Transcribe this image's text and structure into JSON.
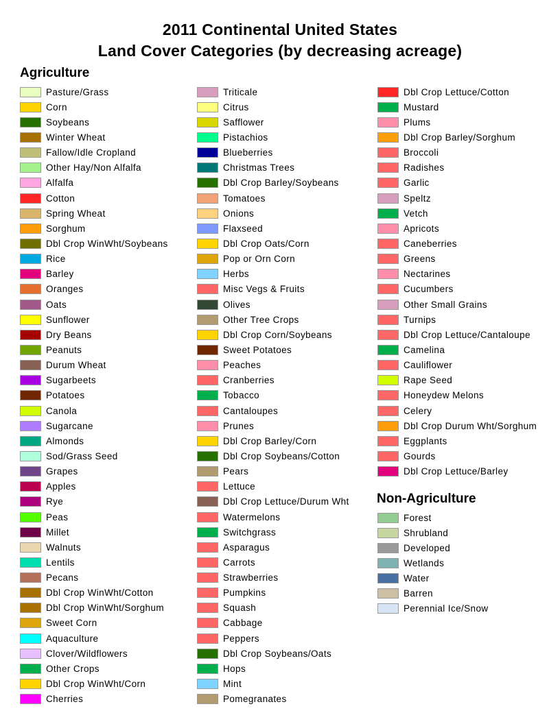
{
  "title_line1": "2011 Continental United States",
  "title_line2": "Land Cover Categories (by decreasing acreage)",
  "agriculture_heading": "Agriculture",
  "non_agriculture_heading": "Non-Agriculture",
  "agriculture": {
    "col1": [
      {
        "label": "Pasture/Grass",
        "color": "#E8FFBF"
      },
      {
        "label": "Corn",
        "color": "#FFD300"
      },
      {
        "label": "Soybeans",
        "color": "#267000"
      },
      {
        "label": "Winter Wheat",
        "color": "#A87000"
      },
      {
        "label": "Fallow/Idle Cropland",
        "color": "#BFBF7A"
      },
      {
        "label": "Other Hay/Non Alfalfa",
        "color": "#A5F28C"
      },
      {
        "label": "Alfalfa",
        "color": "#FFA5E2"
      },
      {
        "label": "Cotton",
        "color": "#FF2626"
      },
      {
        "label": "Spring Wheat",
        "color": "#D8B56B"
      },
      {
        "label": "Sorghum",
        "color": "#FF9E0A"
      },
      {
        "label": "Dbl Crop WinWht/Soybeans",
        "color": "#707000"
      },
      {
        "label": "Rice",
        "color": "#00A8E2"
      },
      {
        "label": "Barley",
        "color": "#E2007C"
      },
      {
        "label": "Oranges",
        "color": "#E5702E"
      },
      {
        "label": "Oats",
        "color": "#A05989"
      },
      {
        "label": "Sunflower",
        "color": "#FFFF00"
      },
      {
        "label": "Dry Beans",
        "color": "#A50000"
      },
      {
        "label": "Peanuts",
        "color": "#70A500"
      },
      {
        "label": "Durum Wheat",
        "color": "#896054"
      },
      {
        "label": "Sugarbeets",
        "color": "#A800E2"
      },
      {
        "label": "Potatoes",
        "color": "#702600"
      },
      {
        "label": "Canola",
        "color": "#D1FF00"
      },
      {
        "label": "Sugarcane",
        "color": "#AF7CFF"
      },
      {
        "label": "Almonds",
        "color": "#00A582"
      },
      {
        "label": "Sod/Grass Seed",
        "color": "#AFFFDD"
      },
      {
        "label": "Grapes",
        "color": "#704489"
      },
      {
        "label": "Apples",
        "color": "#BA004F"
      },
      {
        "label": "Rye",
        "color": "#AD007C"
      },
      {
        "label": "Peas",
        "color": "#54FF00"
      },
      {
        "label": "Millet",
        "color": "#6D0049"
      },
      {
        "label": "Walnuts",
        "color": "#EAD6AF"
      },
      {
        "label": "Lentils",
        "color": "#00DDAF"
      },
      {
        "label": "Pecans",
        "color": "#B5705B"
      },
      {
        "label": "Dbl Crop WinWht/Cotton",
        "color": "#A87000"
      },
      {
        "label": "Dbl Crop WinWht/Sorghum",
        "color": "#A87000"
      },
      {
        "label": "Sweet Corn",
        "color": "#DDA50A"
      },
      {
        "label": "Aquaculture",
        "color": "#00FFFF"
      },
      {
        "label": "Clover/Wildflowers",
        "color": "#E8BFFF"
      },
      {
        "label": "Other Crops",
        "color": "#00AF4C"
      },
      {
        "label": "Dbl Crop WinWht/Corn",
        "color": "#FFD300"
      },
      {
        "label": "Cherries",
        "color": "#FF00FF"
      }
    ],
    "col2": [
      {
        "label": "Triticale",
        "color": "#D69EBC"
      },
      {
        "label": "Citrus",
        "color": "#FFFF7F"
      },
      {
        "label": "Safflower",
        "color": "#D8D800"
      },
      {
        "label": "Pistachios",
        "color": "#00FF8C"
      },
      {
        "label": "Blueberries",
        "color": "#000099"
      },
      {
        "label": "Christmas Trees",
        "color": "#007777"
      },
      {
        "label": "Dbl Crop Barley/Soybeans",
        "color": "#267000"
      },
      {
        "label": "Tomatoes",
        "color": "#F2A377"
      },
      {
        "label": "Onions",
        "color": "#FFD27F"
      },
      {
        "label": "Flaxseed",
        "color": "#7F99FF"
      },
      {
        "label": "Dbl Crop Oats/Corn",
        "color": "#FFD300"
      },
      {
        "label": "Pop or Orn Corn",
        "color": "#DDA50A"
      },
      {
        "label": "Herbs",
        "color": "#7FD3FF"
      },
      {
        "label": "Misc Vegs & Fruits",
        "color": "#FF6666"
      },
      {
        "label": "Olives",
        "color": "#334933"
      },
      {
        "label": "Other Tree Crops",
        "color": "#B29B70"
      },
      {
        "label": "Dbl Crop Corn/Soybeans",
        "color": "#FFD300"
      },
      {
        "label": "Sweet Potatoes",
        "color": "#702600"
      },
      {
        "label": "Peaches",
        "color": "#FF8EAA"
      },
      {
        "label": "Cranberries",
        "color": "#FF6666"
      },
      {
        "label": "Tobacco",
        "color": "#00AF4C"
      },
      {
        "label": "Cantaloupes",
        "color": "#FF6666"
      },
      {
        "label": "Prunes",
        "color": "#FF8EAA"
      },
      {
        "label": "Dbl Crop Barley/Corn",
        "color": "#FFD300"
      },
      {
        "label": "Dbl Crop Soybeans/Cotton",
        "color": "#267000"
      },
      {
        "label": "Pears",
        "color": "#B29B70"
      },
      {
        "label": "Lettuce",
        "color": "#FF6666"
      },
      {
        "label": "Dbl Crop Lettuce/Durum Wht",
        "color": "#896054"
      },
      {
        "label": "Watermelons",
        "color": "#FF6666"
      },
      {
        "label": "Switchgrass",
        "color": "#00AF4C"
      },
      {
        "label": "Asparagus",
        "color": "#FF6666"
      },
      {
        "label": "Carrots",
        "color": "#FF6666"
      },
      {
        "label": "Strawberries",
        "color": "#FF6666"
      },
      {
        "label": "Pumpkins",
        "color": "#FF6666"
      },
      {
        "label": "Squash",
        "color": "#FF6666"
      },
      {
        "label": "Cabbage",
        "color": "#FF6666"
      },
      {
        "label": "Peppers",
        "color": "#FF6666"
      },
      {
        "label": "Dbl Crop Soybeans/Oats",
        "color": "#267000"
      },
      {
        "label": "Hops",
        "color": "#00AF4C"
      },
      {
        "label": "Mint",
        "color": "#7FD3FF"
      },
      {
        "label": "Pomegranates",
        "color": "#B29B70"
      }
    ],
    "col3": [
      {
        "label": "Dbl Crop Lettuce/Cotton",
        "color": "#FF2626"
      },
      {
        "label": "Mustard",
        "color": "#00AF4C"
      },
      {
        "label": "Plums",
        "color": "#FF8EAA"
      },
      {
        "label": "Dbl Crop Barley/Sorghum",
        "color": "#FF9E0A"
      },
      {
        "label": "Broccoli",
        "color": "#FF6666"
      },
      {
        "label": "Radishes",
        "color": "#FF6666"
      },
      {
        "label": "Garlic",
        "color": "#FF6666"
      },
      {
        "label": "Speltz",
        "color": "#D69EBC"
      },
      {
        "label": "Vetch",
        "color": "#00AF4C"
      },
      {
        "label": "Apricots",
        "color": "#FF8EAA"
      },
      {
        "label": "Caneberries",
        "color": "#FF6666"
      },
      {
        "label": "Greens",
        "color": "#FF6666"
      },
      {
        "label": "Nectarines",
        "color": "#FF8EAA"
      },
      {
        "label": "Cucumbers",
        "color": "#FF6666"
      },
      {
        "label": "Other Small Grains",
        "color": "#D69EBC"
      },
      {
        "label": "Turnips",
        "color": "#FF6666"
      },
      {
        "label": "Dbl Crop Lettuce/Cantaloupe",
        "color": "#FF6666"
      },
      {
        "label": "Camelina",
        "color": "#00AF4C"
      },
      {
        "label": "Cauliflower",
        "color": "#FF6666"
      },
      {
        "label": "Rape Seed",
        "color": "#D1FF00"
      },
      {
        "label": "Honeydew Melons",
        "color": "#FF6666"
      },
      {
        "label": "Celery",
        "color": "#FF6666"
      },
      {
        "label": "Dbl Crop Durum Wht/Sorghum",
        "color": "#FF9E0A"
      },
      {
        "label": "Eggplants",
        "color": "#FF6666"
      },
      {
        "label": "Gourds",
        "color": "#FF6666"
      },
      {
        "label": "Dbl Crop Lettuce/Barley",
        "color": "#E2007C"
      }
    ]
  },
  "non_agriculture": [
    {
      "label": "Forest",
      "color": "#93CC93"
    },
    {
      "label": "Shrubland",
      "color": "#C6D69E"
    },
    {
      "label": "Developed",
      "color": "#999999"
    },
    {
      "label": "Wetlands",
      "color": "#7FB2B2"
    },
    {
      "label": "Water",
      "color": "#4970A3"
    },
    {
      "label": "Barren",
      "color": "#CCBFA3"
    },
    {
      "label": "Perennial Ice/Snow",
      "color": "#D8E5F7"
    }
  ]
}
